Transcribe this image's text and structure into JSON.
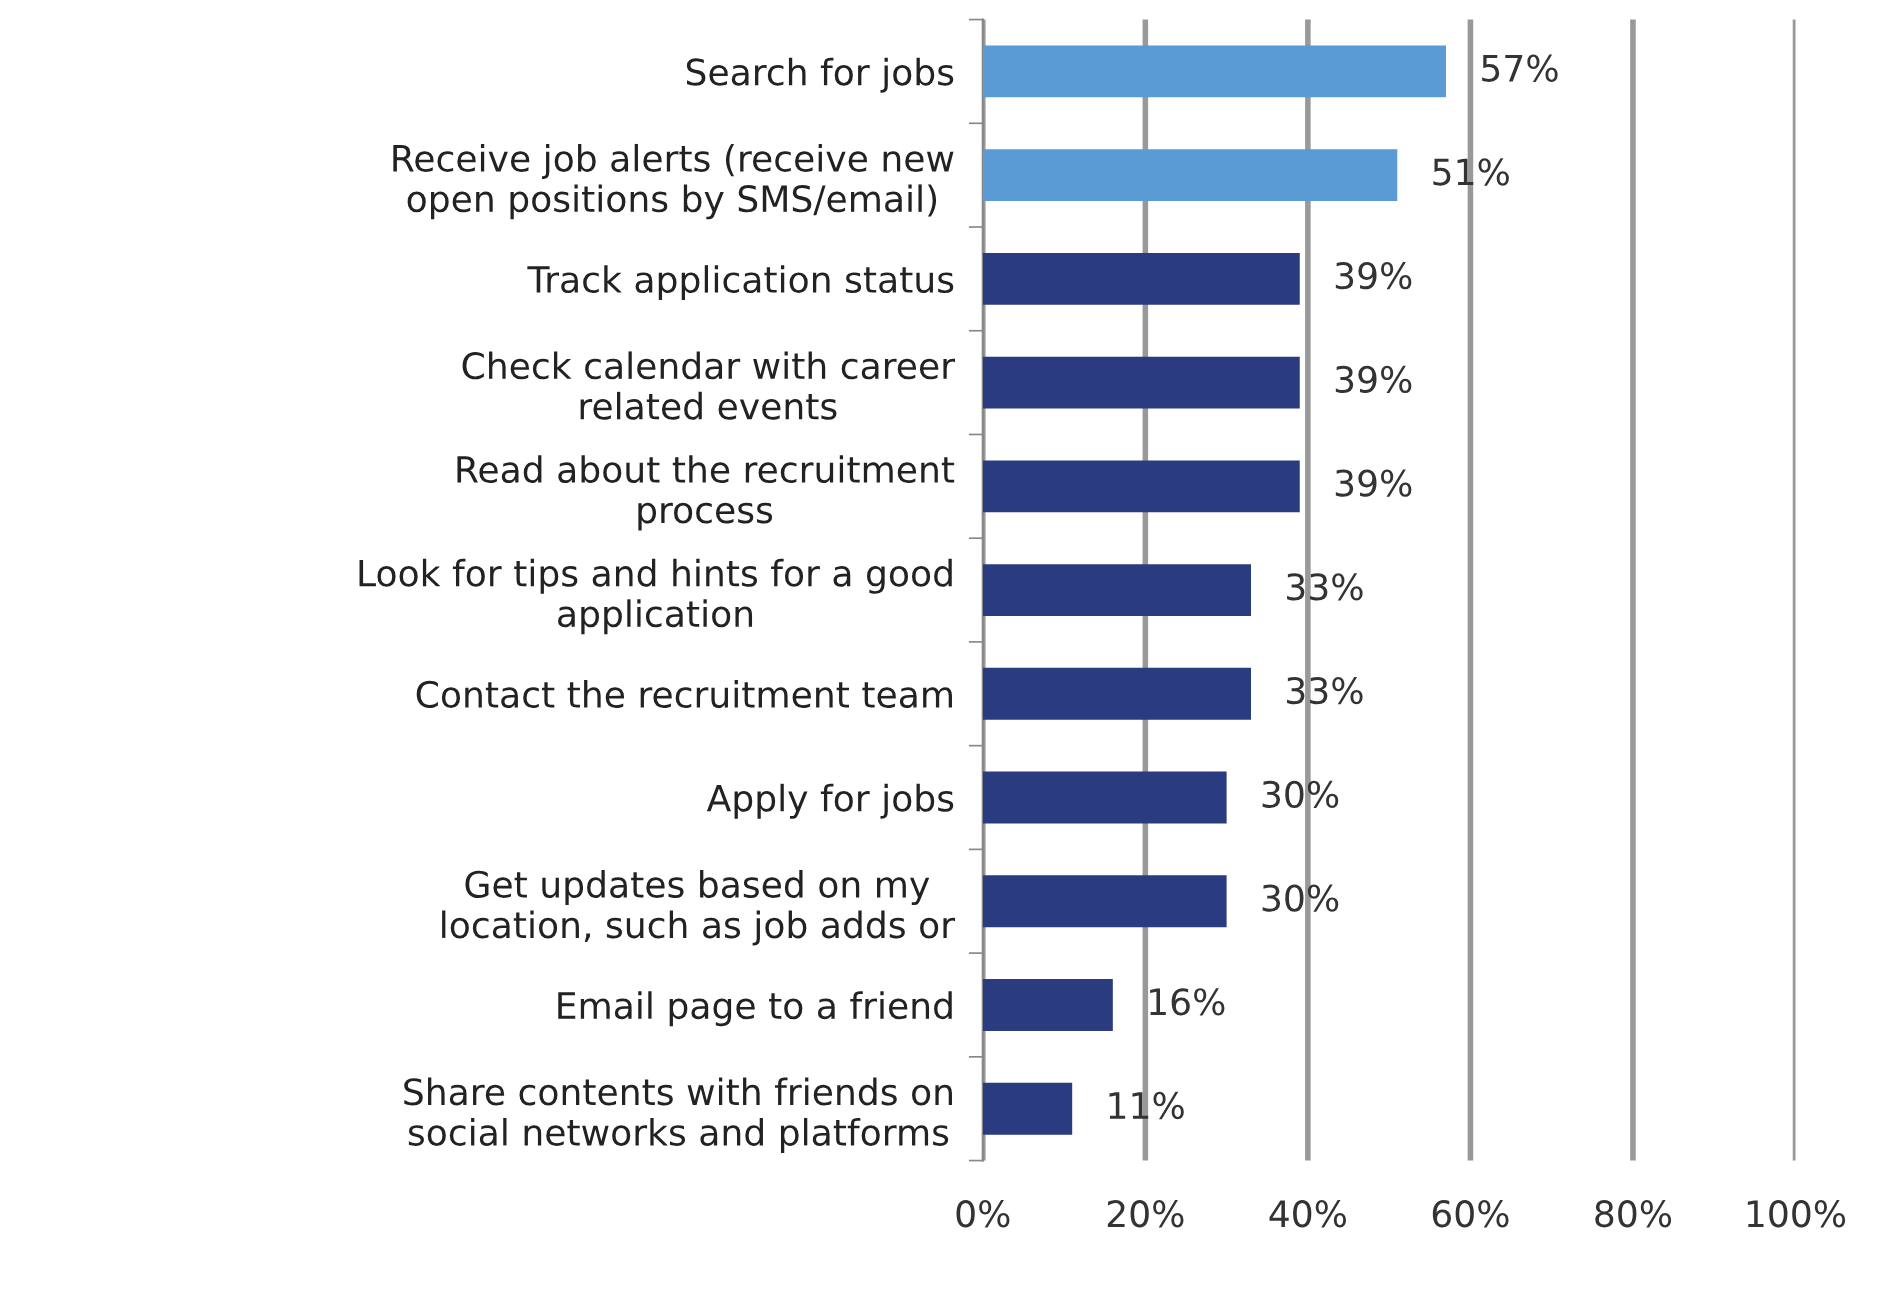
{
  "chart_data": {
    "type": "bar",
    "orientation": "horizontal",
    "categories": [
      "Search for jobs",
      "Receive job alerts (receive new\nopen positions by SMS/email)",
      "Track application status",
      "Check calendar with career\nrelated events",
      "Read about the recruitment\nprocess",
      "Look for tips and hints for a good\napplication",
      "Contact the recruitment team",
      "Apply for jobs",
      "Get updates based on my\nlocation, such as job adds or",
      "Email page to a friend",
      "Share contents with friends on\nsocial networks and platforms"
    ],
    "values": [
      57,
      51,
      39,
      39,
      39,
      33,
      33,
      30,
      30,
      16,
      11
    ],
    "colors": [
      "#5b9bd5",
      "#5b9bd5",
      "#2b3b80",
      "#2b3b80",
      "#2b3b80",
      "#2b3b80",
      "#2b3b80",
      "#2b3b80",
      "#2b3b80",
      "#2b3b80",
      "#2b3b80"
    ],
    "value_labels": [
      "57%",
      "51%",
      "39%",
      "39%",
      "39%",
      "33%",
      "33%",
      "30%",
      "30%",
      "16%",
      "11%"
    ],
    "xlim": [
      0,
      100
    ],
    "xticks": [
      {
        "value": 0,
        "label": "0%"
      },
      {
        "value": 20,
        "label": "20%"
      },
      {
        "value": 40,
        "label": "40%"
      },
      {
        "value": 60,
        "label": "60%"
      },
      {
        "value": 80,
        "label": "80%"
      },
      {
        "value": 100,
        "label": "100%"
      }
    ],
    "grid": "x",
    "legend": false
  }
}
